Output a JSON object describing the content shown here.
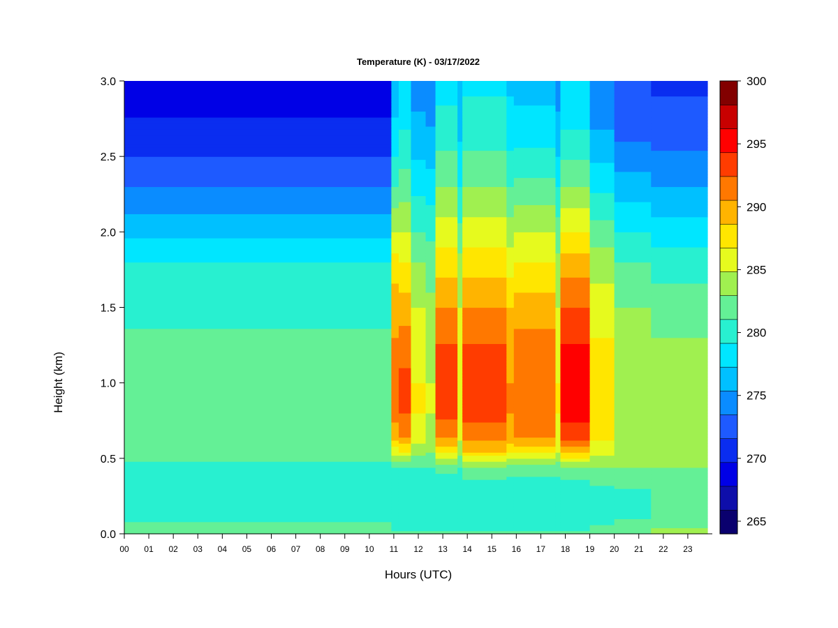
{
  "chart_data": {
    "type": "heatmap",
    "title": "Temperature (K) - 03/17/2022",
    "xlabel": "Hours (UTC)",
    "ylabel": "Height (km)",
    "xlim": [
      0,
      24
    ],
    "ylim": [
      0,
      3
    ],
    "x_ticks": [
      "00",
      "01",
      "02",
      "03",
      "04",
      "05",
      "06",
      "07",
      "08",
      "09",
      "10",
      "11",
      "12",
      "13",
      "14",
      "15",
      "16",
      "17",
      "18",
      "19",
      "20",
      "21",
      "22",
      "23"
    ],
    "y_ticks": [
      "0.0",
      "0.5",
      "1.0",
      "1.5",
      "2.0",
      "2.5",
      "3.0"
    ],
    "colorbar": {
      "min": 264,
      "max": 300,
      "step": 2,
      "tick_values": [
        265,
        270,
        275,
        280,
        285,
        290,
        295,
        300
      ],
      "colors": [
        "#0a006e",
        "#0e0eaa",
        "#0000e6",
        "#0a2df0",
        "#1e5aff",
        "#0a8cff",
        "#00c0ff",
        "#00e6ff",
        "#28f0d0",
        "#64f096",
        "#a0f050",
        "#e6fa1e",
        "#ffe600",
        "#ffb400",
        "#ff7800",
        "#ff3c00",
        "#ff0000",
        "#c80000",
        "#820000"
      ]
    },
    "profile_heights_km": [
      0.0,
      0.05,
      0.15,
      0.3,
      0.45,
      0.55,
      0.65,
      0.8,
      1.0,
      1.2,
      1.5,
      1.8,
      2.0,
      2.3,
      2.6,
      3.0
    ],
    "profiles": [
      {
        "hours": [
          0.0,
          10.9
        ],
        "temps_K": [
          283.5,
          282.5,
          281.0,
          280.0,
          281.5,
          282.8,
          283.2,
          283.3,
          283.0,
          282.6,
          281.5,
          280.0,
          277.5,
          274.0,
          271.0,
          268.5
        ]
      },
      {
        "hours": [
          10.9,
          11.2
        ],
        "temps_K": [
          282.5,
          281.5,
          280.5,
          280.0,
          282.0,
          287.0,
          291.0,
          292.5,
          293.0,
          292.5,
          291.0,
          289.0,
          286.0,
          282.0,
          279.0,
          276.5
        ]
      },
      {
        "hours": [
          11.2,
          11.7
        ],
        "temps_K": [
          282.5,
          281.5,
          280.5,
          280.0,
          282.0,
          288.0,
          292.0,
          294.0,
          294.5,
          293.5,
          291.0,
          288.0,
          286.0,
          283.0,
          280.5,
          278.0
        ]
      },
      {
        "hours": [
          11.7,
          12.3
        ],
        "temps_K": [
          282.5,
          281.5,
          280.5,
          280.0,
          282.0,
          285.0,
          287.0,
          288.0,
          288.0,
          287.5,
          286.0,
          284.0,
          282.0,
          279.5,
          277.0,
          275.0
        ]
      },
      {
        "hours": [
          12.3,
          12.7
        ],
        "temps_K": [
          282.5,
          281.5,
          280.5,
          280.0,
          282.0,
          284.0,
          285.0,
          286.0,
          286.0,
          285.5,
          284.5,
          283.0,
          281.5,
          279.0,
          276.5,
          274.5
        ]
      },
      {
        "hours": [
          12.7,
          13.6
        ],
        "temps_K": [
          282.5,
          281.5,
          280.5,
          280.0,
          283.0,
          289.0,
          292.5,
          294.5,
          295.0,
          294.5,
          292.0,
          289.0,
          287.0,
          284.0,
          281.5,
          279.0
        ]
      },
      {
        "hours": [
          13.6,
          13.8
        ],
        "temps_K": [
          282.5,
          281.5,
          280.5,
          280.0,
          282.0,
          285.0,
          286.5,
          287.5,
          287.5,
          287.0,
          286.0,
          284.5,
          282.5,
          280.0,
          278.0,
          276.0
        ]
      },
      {
        "hours": [
          13.8,
          15.6
        ],
        "temps_K": [
          282.5,
          281.5,
          280.5,
          280.5,
          284.0,
          290.0,
          293.0,
          294.5,
          295.0,
          294.5,
          292.0,
          289.0,
          287.0,
          284.0,
          281.5,
          279.5
        ]
      },
      {
        "hours": [
          15.6,
          15.9
        ],
        "temps_K": [
          282.5,
          281.5,
          280.5,
          280.5,
          283.5,
          289.0,
          291.0,
          292.0,
          292.0,
          291.5,
          290.0,
          287.0,
          285.0,
          282.0,
          279.5,
          277.5
        ]
      },
      {
        "hours": [
          15.9,
          17.6
        ],
        "temps_K": [
          282.5,
          281.5,
          280.5,
          280.5,
          283.5,
          289.0,
          292.0,
          293.0,
          293.5,
          293.0,
          291.0,
          288.0,
          286.0,
          282.5,
          279.5,
          277.0
        ]
      },
      {
        "hours": [
          17.6,
          17.8
        ],
        "temps_K": [
          282.5,
          281.5,
          280.5,
          280.5,
          283.0,
          286.0,
          287.5,
          288.0,
          288.0,
          287.5,
          286.0,
          284.5,
          283.0,
          280.0,
          277.0,
          275.0
        ]
      },
      {
        "hours": [
          17.8,
          19.0
        ],
        "temps_K": [
          282.5,
          281.5,
          280.5,
          280.5,
          284.0,
          291.0,
          295.0,
          296.5,
          297.0,
          296.5,
          294.0,
          291.0,
          288.0,
          284.0,
          280.5,
          278.0
        ]
      },
      {
        "hours": [
          19.0,
          20.0
        ],
        "temps_K": [
          283.0,
          282.0,
          281.0,
          281.5,
          284.0,
          287.0,
          288.5,
          289.0,
          289.0,
          288.5,
          287.0,
          285.0,
          283.0,
          279.5,
          276.5,
          274.0
        ]
      },
      {
        "hours": [
          20.0,
          21.5
        ],
        "temps_K": [
          283.5,
          282.5,
          281.5,
          282.0,
          284.0,
          285.0,
          285.5,
          285.5,
          285.5,
          285.0,
          284.0,
          282.0,
          280.0,
          277.0,
          274.0,
          272.0
        ]
      },
      {
        "hours": [
          21.5,
          23.8
        ],
        "temps_K": [
          285.0,
          283.5,
          282.0,
          282.5,
          284.0,
          285.0,
          285.0,
          285.0,
          285.0,
          284.5,
          283.0,
          281.0,
          279.0,
          276.0,
          273.5,
          271.5
        ]
      }
    ]
  }
}
